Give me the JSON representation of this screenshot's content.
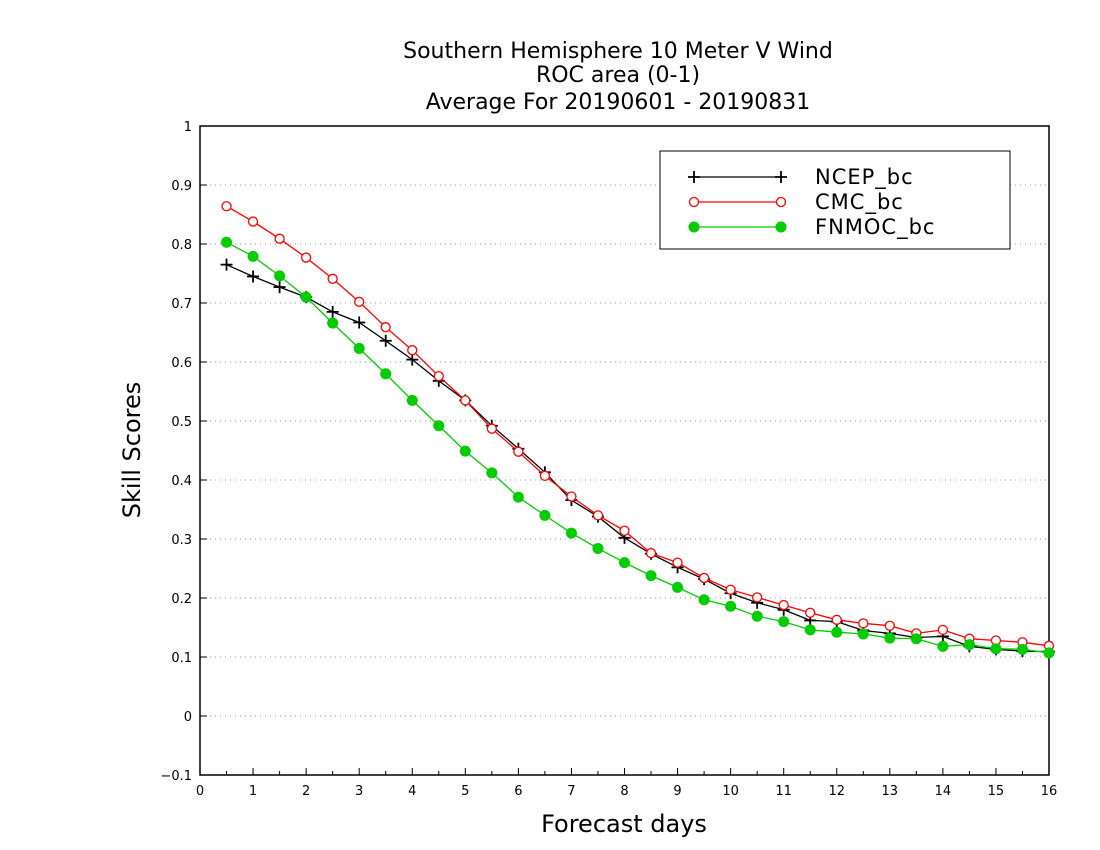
{
  "chart_data": {
    "type": "line",
    "title": [
      "Southern Hemisphere 10 Meter V Wind",
      "ROC area (0-1)",
      "Average For 20190601 - 20190831"
    ],
    "xlabel": "Forecast days",
    "ylabel": "Skill Scores",
    "xlim": [
      0,
      16
    ],
    "ylim": [
      -0.1,
      1
    ],
    "xticks": [
      "0",
      "1",
      "2",
      "3",
      "4",
      "5",
      "6",
      "7",
      "8",
      "9",
      "10",
      "11",
      "12",
      "13",
      "14",
      "15",
      "16"
    ],
    "yticks": [
      "−0.1",
      "0",
      "0.1",
      "0.2",
      "0.3",
      "0.4",
      "0.5",
      "0.6",
      "0.7",
      "0.8",
      "0.9",
      "1"
    ],
    "grid": "horizontal dotted",
    "legend_position": "top-right",
    "x": [
      0.5,
      1,
      1.5,
      2,
      2.5,
      3,
      3.5,
      4,
      4.5,
      5,
      5.5,
      6,
      6.5,
      7,
      7.5,
      8,
      8.5,
      9,
      9.5,
      10,
      10.5,
      11,
      11.5,
      12,
      12.5,
      13,
      13.5,
      14,
      14.5,
      15,
      15.5,
      16
    ],
    "series": [
      {
        "name": "NCEP_bc",
        "color": "#000000",
        "marker": "plus",
        "values": [
          0.765,
          0.745,
          0.727,
          0.71,
          0.685,
          0.667,
          0.636,
          0.604,
          0.568,
          0.535,
          0.492,
          0.453,
          0.413,
          0.366,
          0.338,
          0.302,
          0.275,
          0.252,
          0.232,
          0.208,
          0.192,
          0.18,
          0.162,
          0.16,
          0.145,
          0.14,
          0.133,
          0.135,
          0.118,
          0.113,
          0.11,
          0.109
        ]
      },
      {
        "name": "CMC_bc",
        "color": "#ff0000",
        "marker": "open-circle",
        "values": [
          0.864,
          0.838,
          0.809,
          0.777,
          0.741,
          0.702,
          0.659,
          0.62,
          0.576,
          0.535,
          0.487,
          0.448,
          0.407,
          0.372,
          0.34,
          0.314,
          0.276,
          0.26,
          0.234,
          0.214,
          0.201,
          0.188,
          0.175,
          0.163,
          0.157,
          0.153,
          0.14,
          0.146,
          0.131,
          0.128,
          0.125,
          0.119
        ]
      },
      {
        "name": "FNMOC_bc",
        "color": "#00cc00",
        "marker": "filled-circle",
        "values": [
          0.803,
          0.779,
          0.746,
          0.71,
          0.666,
          0.623,
          0.58,
          0.535,
          0.492,
          0.449,
          0.412,
          0.371,
          0.34,
          0.31,
          0.284,
          0.26,
          0.238,
          0.218,
          0.197,
          0.186,
          0.169,
          0.16,
          0.146,
          0.142,
          0.139,
          0.132,
          0.131,
          0.118,
          0.121,
          0.114,
          0.113,
          0.107
        ]
      }
    ]
  }
}
